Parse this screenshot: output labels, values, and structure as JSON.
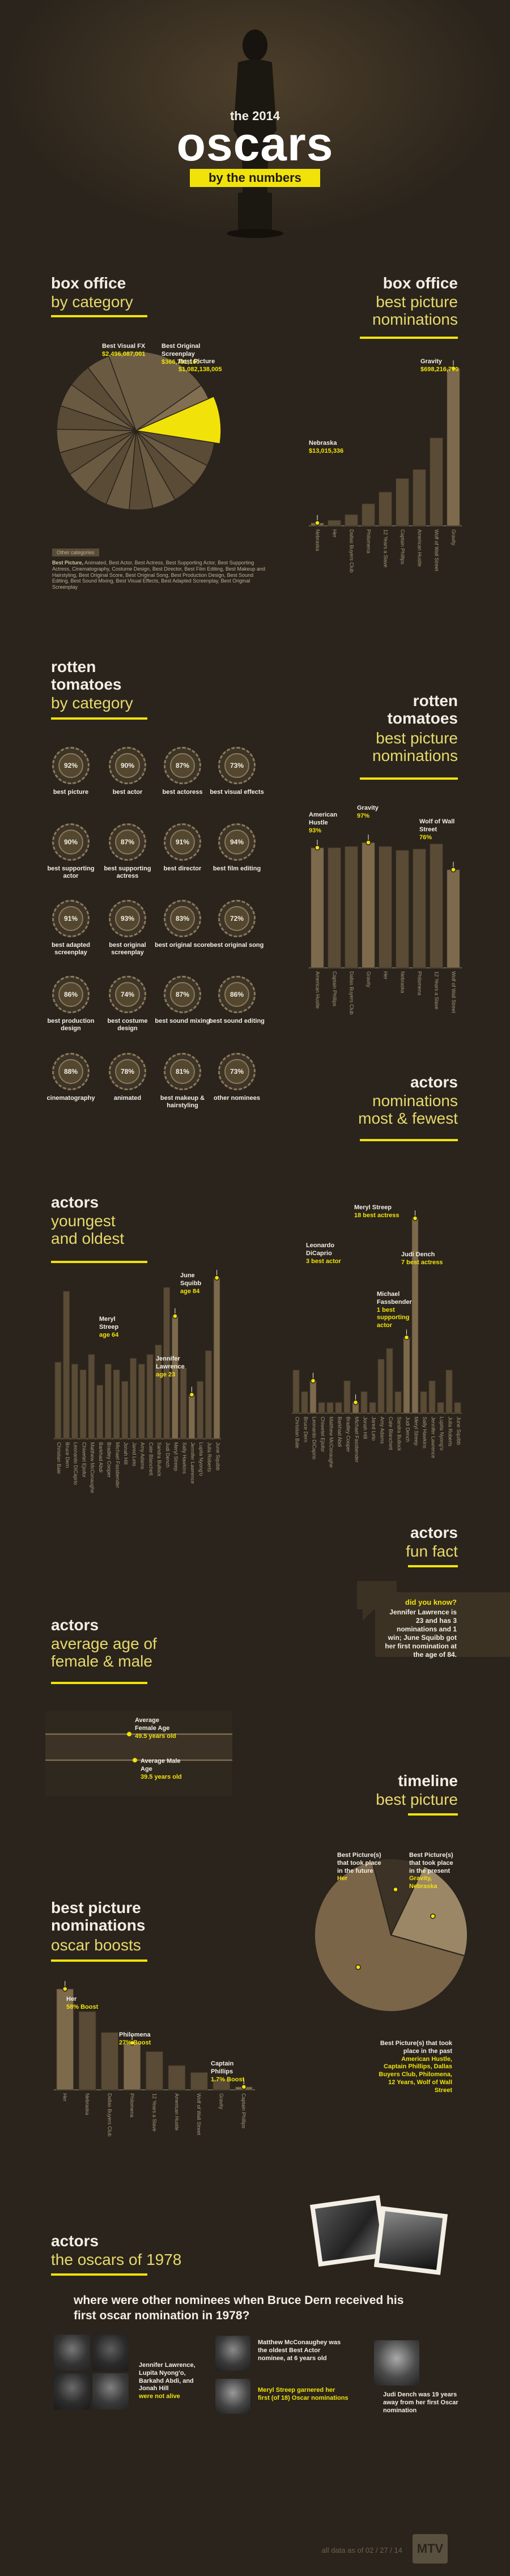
{
  "header": {
    "pretitle": "the 2014",
    "title": "oscars",
    "subtitle": "by the numbers"
  },
  "box_office_category": {
    "title": "box office",
    "subtitle": "by category",
    "labels": [
      {
        "name": "Best Visual FX",
        "value": "$2,496,087,001"
      },
      {
        "name": "Best Original Screenplay",
        "value": "$366,731,160"
      },
      {
        "name": "Best Picture",
        "value": "$1,082,138,005"
      }
    ],
    "legend_title": "Other categories",
    "legend_text_lead": "Best Picture,",
    "legend_text": "Animated, Best Actor, Best Actress, Best Supporting Actor, Best Supporting Actress, Cinematography, Costume Design, Best Director, Best Film Editing, Best Makeup and Hairstyling, Best Original Score, Best Original Song, Best Production Design, Best Sound Editing, Best Sound Mixing, Best Visual Effects, Best Adapted Screenplay, Best Original Screenplay"
  },
  "box_office_bp": {
    "title": "box office",
    "subtitle": "best picture nominations",
    "callouts": [
      {
        "name": "Nebraska",
        "value": "$13,015,336"
      },
      {
        "name": "Gravity",
        "value": "$698,216,700"
      }
    ]
  },
  "rt_category": {
    "title": "rotten tomatoes",
    "subtitle": "by category",
    "cells": [
      {
        "pct": "92%",
        "label": "best picture"
      },
      {
        "pct": "90%",
        "label": "best actor"
      },
      {
        "pct": "87%",
        "label": "best actoress"
      },
      {
        "pct": "73%",
        "label": "best visual effects"
      },
      {
        "pct": "90%",
        "label": "best supporting actor"
      },
      {
        "pct": "87%",
        "label": "best supporting actress"
      },
      {
        "pct": "91%",
        "label": "best director"
      },
      {
        "pct": "94%",
        "label": "best film editing"
      },
      {
        "pct": "91%",
        "label": "best adapted screenplay"
      },
      {
        "pct": "93%",
        "label": "best original screenplay"
      },
      {
        "pct": "83%",
        "label": "best original score"
      },
      {
        "pct": "72%",
        "label": "best original song"
      },
      {
        "pct": "86%",
        "label": "best production design"
      },
      {
        "pct": "74%",
        "label": "best costume design"
      },
      {
        "pct": "87%",
        "label": "best sound mixing"
      },
      {
        "pct": "86%",
        "label": "best sound editing"
      },
      {
        "pct": "88%",
        "label": "cinematography"
      },
      {
        "pct": "78%",
        "label": "animated"
      },
      {
        "pct": "81%",
        "label": "best makeup & hairstyling"
      },
      {
        "pct": "73%",
        "label": "other nominees"
      }
    ]
  },
  "rt_bp": {
    "title": "rotten tomatoes",
    "subtitle": "best picture nominations",
    "callouts": [
      {
        "name": "American Hustle",
        "value": "93%"
      },
      {
        "name": "Gravity",
        "value": "97%"
      },
      {
        "name": "Wolf of Wall Street",
        "value": "76%"
      }
    ]
  },
  "actors_nom": {
    "title": "actors",
    "subtitle": "nominations most & fewest",
    "callouts": [
      {
        "name": "Meryl Streep",
        "value": "18 best actress"
      },
      {
        "name": "Leonardo DiCaprio",
        "value": "3 best actor"
      },
      {
        "name": "Judi Dench",
        "value": "7 best actress"
      },
      {
        "name": "Michael Fassbender",
        "value": "1 best supporting actor"
      }
    ]
  },
  "actors_age": {
    "title": "actors",
    "subtitle": "youngest and oldest",
    "callouts": [
      {
        "name": "June Squibb",
        "value": "age 84"
      },
      {
        "name": "Meryl Streep",
        "value": "age 64"
      },
      {
        "name": "Jennifer Lawrence",
        "value": "age 23"
      }
    ]
  },
  "fun_fact": {
    "title": "actors",
    "subtitle": "fun fact",
    "q": "did you know?",
    "text": "Jennifer Lawrence is 23 and has 3 nominations and 1 win; June Squibb got her first nomination at the age of 84."
  },
  "avg_age": {
    "title": "actors",
    "subtitle": "average age of female & male",
    "female_label": "Average Female Age",
    "female_value": "49.5 years old",
    "male_label": "Average Male Age",
    "male_value": "39.5 years old"
  },
  "timeline": {
    "title": "timeline",
    "subtitle": "best picture",
    "future_label": "Best Picture(s) that took place in the future",
    "future_value": "Her",
    "present_label": "Best Picture(s) that took place in the present",
    "present_value": "Gravity, Nebraska",
    "past_label": "Best Picture(s) that took place in the past",
    "past_value": "American Hustle, Captain Phillips, Dallas Buyers Club, Philomena, 12 Years, Wolf of Wall Street"
  },
  "boosts": {
    "title": "best picture nominations",
    "subtitle": "oscar boosts",
    "callouts": [
      {
        "name": "Her",
        "value": "58% Boost"
      },
      {
        "name": "Philomena",
        "value": "27% Boost"
      },
      {
        "name": "Captain Phillips",
        "value": "1.7% Boost"
      }
    ]
  },
  "oscars1978": {
    "title": "actors",
    "subtitle": "the oscars of 1978",
    "question": "where were other nominees when Bruce Dern received his first oscar nomination in 1978?",
    "fact1": "Jennifer Lawrence, Lupita Nyong'o, Barkahd Abdi, and Jonah Hill",
    "fact1_hl": "were not alive",
    "fact2": "Matthew McConaughey was the oldest Best Actor nominee, at 6 years old",
    "fact3": "Meryl Streep garnered her first (of 18) Oscar nominations",
    "fact4": "Judi Dench was 19 years away from her first Oscar nomination"
  },
  "footer": {
    "text": "all data as of 02 / 27 / 14",
    "logo": "MTV"
  },
  "chart_data": [
    {
      "type": "pie",
      "title": "box office by category",
      "categories": [
        "Best Visual FX",
        "Best Original Screenplay",
        "Best Picture",
        "Other categories"
      ],
      "values": [
        2496087001,
        366731160,
        1082138005,
        8000000000
      ]
    },
    {
      "type": "bar",
      "title": "box office best picture nominations",
      "categories": [
        "Nebraska",
        "Her",
        "Dallas Buyers Club",
        "Philomena",
        "12 Years a Slave",
        "Captain Phillips",
        "American Hustle",
        "Wolf of Wall Street",
        "Gravity"
      ],
      "values": [
        13015336,
        25000000,
        50000000,
        98000000,
        150000000,
        210000000,
        250000000,
        390000000,
        698216700
      ]
    },
    {
      "type": "bar",
      "title": "rotten tomatoes best picture nominations",
      "categories": [
        "American Hustle",
        "Captain Phillips",
        "Dallas Buyers Club",
        "Gravity",
        "Her",
        "Nebraska",
        "Philomena",
        "12 Years a Slave",
        "Wolf of Wall Street"
      ],
      "values": [
        93,
        93,
        94,
        97,
        94,
        91,
        92,
        96,
        76
      ],
      "ylim": [
        0,
        100
      ]
    },
    {
      "type": "bar",
      "title": "actors nominations most & fewest",
      "categories": [
        "Christian Bale",
        "Bruce Dern",
        "Leonardo DiCaprio",
        "Chiwetel Ejiofor",
        "Matthew McConaughey",
        "Barkhad Abdi",
        "Bradley Cooper",
        "Michael Fassbender",
        "Jonah Hill",
        "Jared Leto",
        "Amy Adams",
        "Cate Blanchett",
        "Sandra Bullock",
        "Judi Dench",
        "Meryl Streep",
        "Sally Hawkins",
        "Jennifer Lawrence",
        "Lupita Nyong'o",
        "Julia Roberts",
        "June Squibb"
      ],
      "values": [
        4,
        2,
        3,
        1,
        1,
        1,
        3,
        1,
        2,
        1,
        5,
        6,
        2,
        7,
        18,
        2,
        3,
        1,
        4,
        1
      ]
    },
    {
      "type": "bar",
      "title": "actors youngest and oldest",
      "categories": [
        "Christian Bale",
        "Bruce Dern",
        "Leonardo DiCaprio",
        "Chiwetel Ejiofor",
        "Matthew McConaughey",
        "Barkhad Abdi",
        "Bradley Cooper",
        "Michael Fassbender",
        "Jonah Hill",
        "Jared Leto",
        "Amy Adams",
        "Cate Blanchett",
        "Sandra Bullock",
        "Judi Dench",
        "Meryl Streep",
        "Sally Hawkins",
        "Jennifer Lawrence",
        "Lupita Nyong'o",
        "Julia Roberts",
        "June Squibb"
      ],
      "values": [
        40,
        77,
        39,
        36,
        44,
        28,
        39,
        36,
        30,
        42,
        39,
        44,
        49,
        79,
        64,
        37,
        23,
        30,
        46,
        84
      ]
    },
    {
      "type": "line",
      "title": "average age of female & male",
      "series": [
        {
          "name": "Average Female Age",
          "values": [
            49.5
          ]
        },
        {
          "name": "Average Male Age",
          "values": [
            39.5
          ]
        }
      ]
    },
    {
      "type": "pie",
      "title": "timeline best picture",
      "categories": [
        "future",
        "present",
        "past"
      ],
      "values": [
        1,
        2,
        6
      ]
    },
    {
      "type": "bar",
      "title": "best picture nominations oscar boosts",
      "categories": [
        "Her",
        "Nebraska",
        "Dallas Buyers Club",
        "Philomena",
        "12 Years a Slave",
        "American Hustle",
        "Wolf of Wall Street",
        "Gravity",
        "Captain Phillips"
      ],
      "values": [
        58,
        45,
        33,
        27,
        22,
        14,
        10,
        6,
        1.7
      ]
    }
  ]
}
